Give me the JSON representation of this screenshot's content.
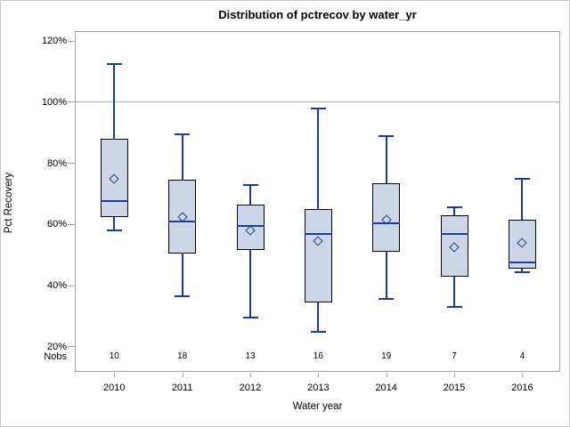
{
  "header": {
    "title": "Distribution of pctrecov by water_yr"
  },
  "colors": {
    "box_fill": "#ccd6e6",
    "box_border": "#000000",
    "line_blue": "#1a3ca0",
    "frame_gray": "#a3a3a3",
    "refline_gray": "#a9a9a9",
    "outer_border": "#c9c9c9",
    "text": "#000000"
  },
  "chart_data": {
    "type": "boxplot",
    "title": "Distribution of pctrecov by water_yr",
    "xlabel": "Water year",
    "ylabel": "Pct Recovery",
    "nobs_label": "Nobs",
    "categories": [
      "2010",
      "2011",
      "2012",
      "2013",
      "2014",
      "2015",
      "2016"
    ],
    "nobs": [
      10,
      18,
      13,
      16,
      19,
      7,
      4
    ],
    "series": [
      {
        "category": "2010",
        "whisker_low": 58,
        "q1": 62.5,
        "median": 67.5,
        "q3": 88,
        "whisker_high": 112.5,
        "mean": 75
      },
      {
        "category": "2011",
        "whisker_low": 36.5,
        "q1": 50.5,
        "median": 61,
        "q3": 74.5,
        "whisker_high": 89.5,
        "mean": 62.5
      },
      {
        "category": "2012",
        "whisker_low": 29.5,
        "q1": 51.5,
        "median": 59.5,
        "q3": 66.5,
        "whisker_high": 73,
        "mean": 58
      },
      {
        "category": "2013",
        "whisker_low": 25,
        "q1": 34.5,
        "median": 57,
        "q3": 65,
        "whisker_high": 98,
        "mean": 54.5
      },
      {
        "category": "2014",
        "whisker_low": 35.5,
        "q1": 51,
        "median": 60.5,
        "q3": 73.5,
        "whisker_high": 89,
        "mean": 61.5
      },
      {
        "category": "2015",
        "whisker_low": 33,
        "q1": 43,
        "median": 57,
        "q3": 63,
        "whisker_high": 65.5,
        "mean": 52.5
      },
      {
        "category": "2016",
        "whisker_low": 44.5,
        "q1": 45.5,
        "median": 47.5,
        "q3": 61.5,
        "whisker_high": 75,
        "mean": 54
      }
    ],
    "yticks": [
      20,
      40,
      60,
      80,
      100,
      120
    ],
    "ytick_labels": [
      "20%",
      "40%",
      "60%",
      "80%",
      "100%",
      "120%"
    ],
    "ylim": [
      11.8,
      123.2
    ],
    "refline": 100,
    "grid": false,
    "legend": false,
    "mean_marker": "open-diamond"
  }
}
